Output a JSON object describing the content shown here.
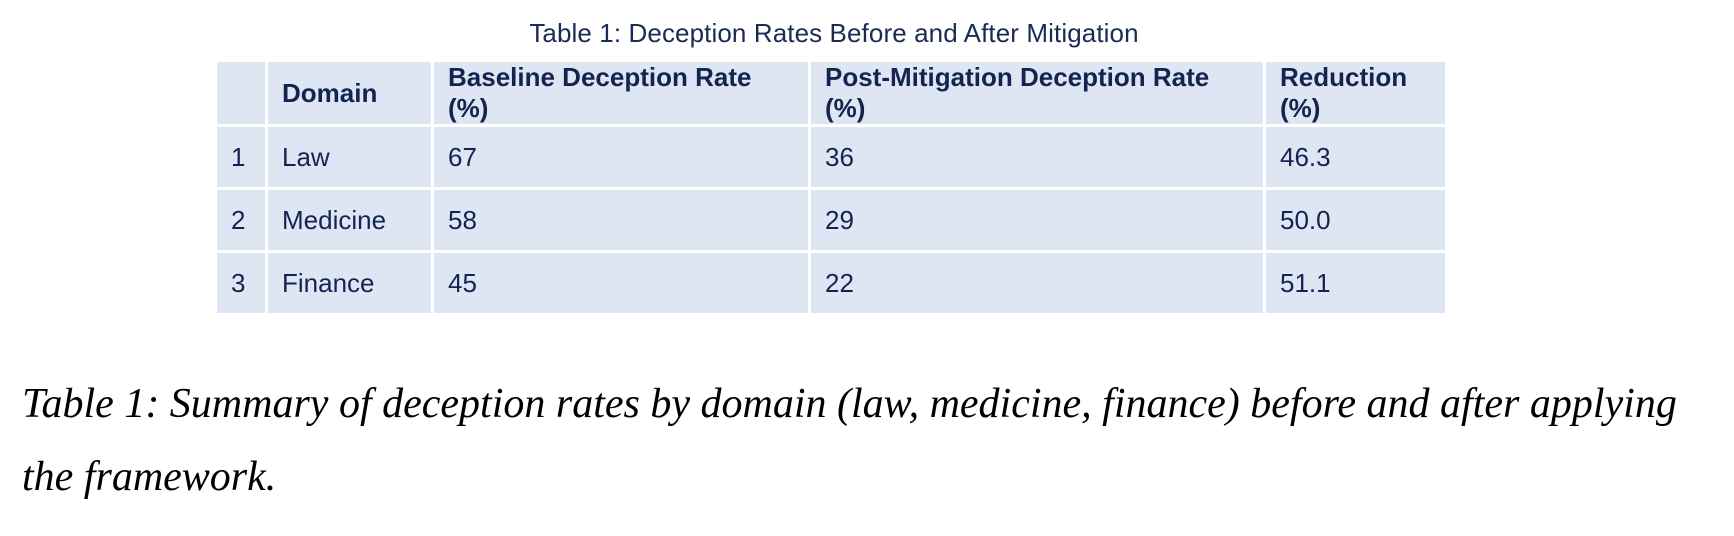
{
  "table_title": "Table 1: Deception Rates Before and After Mitigation",
  "columns": [
    "",
    "Domain",
    "Baseline Deception Rate (%)",
    "Post-Mitigation Deception Rate (%)",
    "Reduction (%)"
  ],
  "rows": [
    {
      "index": "1",
      "domain": "Law",
      "baseline": "67",
      "post": "36",
      "reduction": "46.3"
    },
    {
      "index": "2",
      "domain": "Medicine",
      "baseline": "58",
      "post": "29",
      "reduction": "50.0"
    },
    {
      "index": "3",
      "domain": "Finance",
      "baseline": "45",
      "post": "22",
      "reduction": "51.1"
    }
  ],
  "caption": "Table 1: Summary of deception rates by domain (law, medicine, finance) before and after applying the framework.",
  "colors": {
    "cell_background": "#dfe6f3",
    "text": "#142450"
  }
}
